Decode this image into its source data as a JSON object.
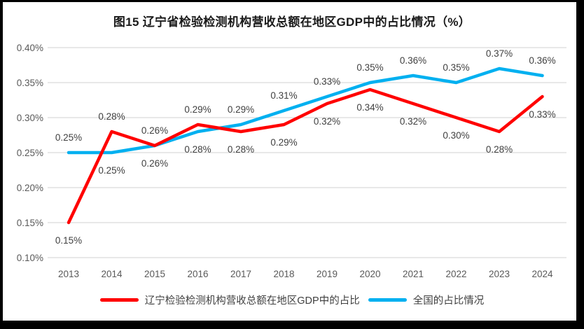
{
  "chart_data": {
    "type": "line",
    "title": "图15 辽宁省检验检测机构营收总额在地区GDP中的占比情况（%）",
    "categories": [
      "2013",
      "2014",
      "2015",
      "2016",
      "2017",
      "2018",
      "2019",
      "2020",
      "2021",
      "2022",
      "2023",
      "2024"
    ],
    "series": [
      {
        "name": "辽宁检验检测机构营收总额在地区GDP中的占比",
        "color": "#FF0000",
        "values": [
          0.15,
          0.28,
          0.26,
          0.29,
          0.28,
          0.29,
          0.32,
          0.34,
          0.32,
          0.3,
          0.28,
          0.33
        ],
        "point_labels": [
          "0.15%",
          "0.28%",
          "0.26%",
          "0.29%",
          "0.28%",
          "0.29%",
          "0.32%",
          "0.34%",
          "0.32%",
          "0.30%",
          "0.28%",
          "0.33%"
        ],
        "label_side": [
          "below",
          "above",
          "above",
          "above",
          "below",
          "below",
          "below",
          "below",
          "below",
          "below",
          "below",
          "below"
        ]
      },
      {
        "name": "全国的占比情况",
        "color": "#00B0F0",
        "values": [
          0.25,
          0.25,
          0.26,
          0.28,
          0.29,
          0.31,
          0.33,
          0.35,
          0.36,
          0.35,
          0.37,
          0.36
        ],
        "point_labels": [
          "0.25%",
          "0.25%",
          "0.26%",
          "0.28%",
          "0.29%",
          "0.31%",
          "0.33%",
          "0.35%",
          "0.36%",
          "0.35%",
          "0.37%",
          "0.36%"
        ],
        "label_side": [
          "above",
          "below",
          "below",
          "below",
          "above",
          "above",
          "above",
          "above",
          "above",
          "above",
          "above",
          "above"
        ]
      }
    ],
    "y_axis": {
      "min": 0.1,
      "max": 0.4,
      "unit": "%",
      "ticks": [
        0.1,
        0.15,
        0.2,
        0.25,
        0.3,
        0.35,
        0.4
      ],
      "tick_labels": [
        "0.10%",
        "0.15%",
        "0.20%",
        "0.25%",
        "0.30%",
        "0.35%",
        "0.40%"
      ]
    },
    "grid": "horizontal",
    "legend_position": "bottom",
    "colors": {
      "gridline": "#D9D9D9",
      "axis_text": "#595959",
      "data_label_text": "#404040",
      "title_text": "#1A1A1A",
      "frame": "#000000",
      "background": "#FFFFFF"
    }
  }
}
